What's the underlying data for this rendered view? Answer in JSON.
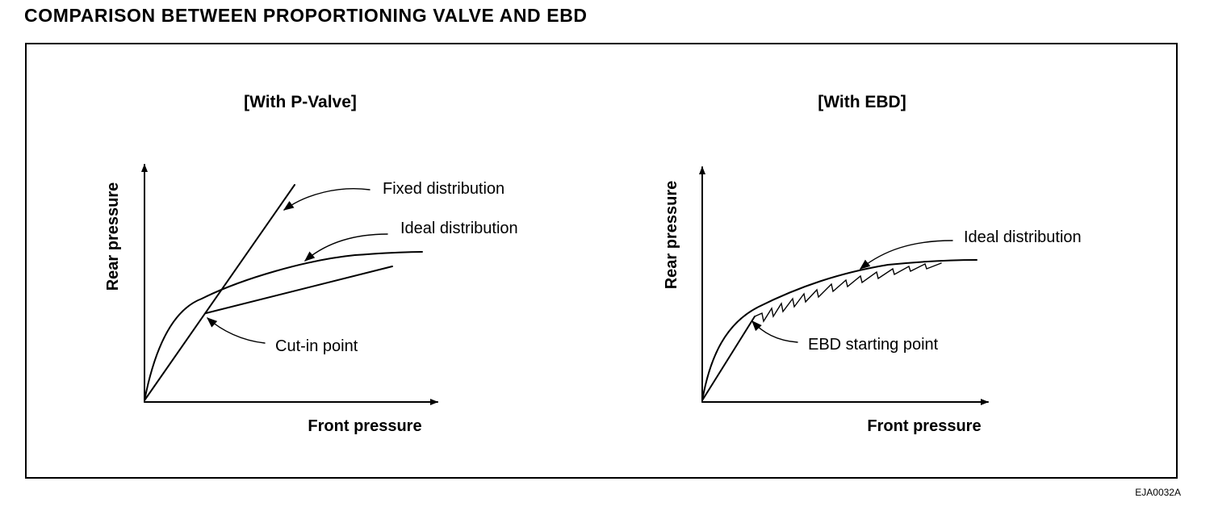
{
  "page_title": "COMPARISON BETWEEN PROPORTIONING VALVE AND EBD",
  "ref_code": "EJA0032A",
  "left_panel": {
    "title": "[With P-Valve]",
    "x_axis_label": "Front pressure",
    "y_axis_label": "Rear pressure",
    "callouts": {
      "fixed": "Fixed distribution",
      "ideal": "Ideal distribution",
      "cut_in": "Cut-in point"
    }
  },
  "right_panel": {
    "title": "[With EBD]",
    "x_axis_label": "Front pressure",
    "y_axis_label": "Rear pressure",
    "callouts": {
      "ideal": "Ideal distribution",
      "ebd_start": "EBD starting point"
    }
  },
  "icons": {
    "axis_arrow": "arrowhead-icon",
    "callout_arrow": "curved-arrow-icon"
  },
  "colors": {
    "ink": "#000000",
    "background": "#ffffff"
  }
}
